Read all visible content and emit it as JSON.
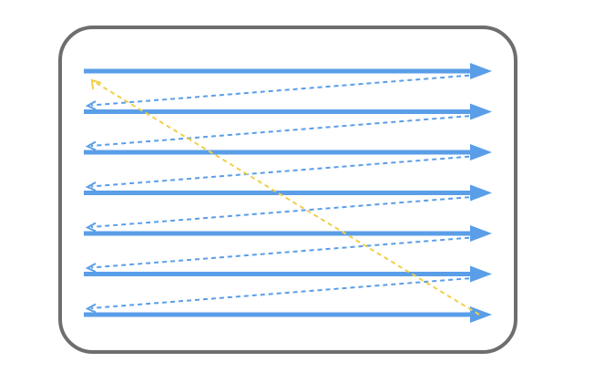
{
  "diagram": {
    "kind": "raster-scan-pattern",
    "scan_line_count": 7,
    "retrace_line_count": 6,
    "colors": {
      "frame": "#6e6e6e",
      "background": "#ffffff",
      "scan_line": "#5a9ee8",
      "retrace_line": "#5a9ee8",
      "vertical_retrace": "#f0cf4a"
    },
    "line_styles": {
      "scan_line": "solid",
      "retrace_line": "dashed",
      "vertical_retrace": "dashed"
    },
    "arrowheads": {
      "scan_line": "filled-triangle-right",
      "retrace_line": "open-chevron-left",
      "vertical_retrace": "open-chevron-up-left"
    }
  }
}
